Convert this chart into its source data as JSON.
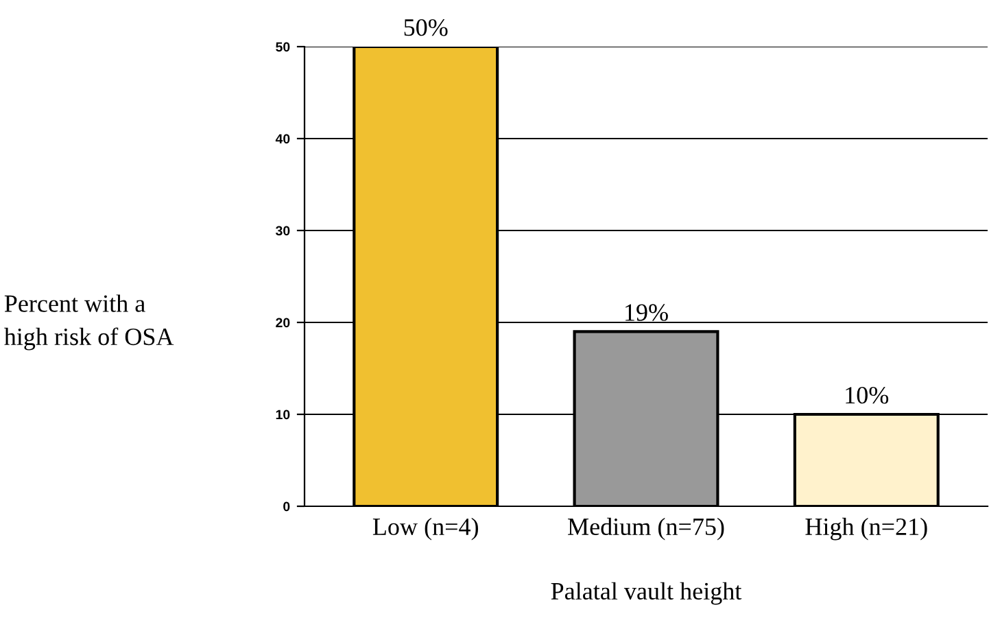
{
  "chart_data": {
    "type": "bar",
    "xlabel": "Palatal vault height",
    "ylabel": "Percent with a\nhigh risk of OSA",
    "categories": [
      "Low (n=4)",
      "Medium (n=75)",
      "High (n=21)"
    ],
    "values": [
      50,
      19,
      10
    ],
    "colors": [
      "#f0c030",
      "#999999",
      "#fff2cc"
    ],
    "value_labels": [
      "50%",
      "19%",
      "10%"
    ],
    "ylim": [
      0,
      50
    ],
    "yticks": [
      0,
      10,
      20,
      30,
      40,
      50
    ],
    "grid": "y",
    "legend": false
  }
}
